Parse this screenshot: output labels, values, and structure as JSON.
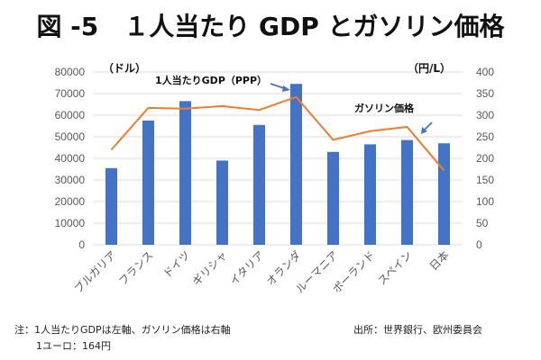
{
  "title": "図 -5　１人当たり GDP とガソリン価格",
  "chart_data": {
    "type": "bar+line",
    "title": "図 -5　１人当たり GDP とガソリン価格",
    "categories": [
      "ブルガリア",
      "フランス",
      "ドイツ",
      "ギリシャ",
      "イタリア",
      "オランダ",
      "ルーマニア",
      "ポーランド",
      "スペイン",
      "日本"
    ],
    "series": [
      {
        "name": "1人当たりGDP（PPP）",
        "type": "bar",
        "axis": "left",
        "color": "#4472C4",
        "values": [
          35500,
          57500,
          66500,
          39000,
          55500,
          74500,
          43000,
          46500,
          48500,
          47000
        ]
      },
      {
        "name": "ガソリン価格",
        "type": "line",
        "axis": "right",
        "color": "#ED7D31",
        "values": [
          220,
          317,
          315,
          321,
          312,
          342,
          243,
          263,
          273,
          172
        ]
      }
    ],
    "y_left": {
      "label": "（ドル）",
      "range": [
        0,
        80000
      ],
      "ticks": [
        "0",
        "10000",
        "20000",
        "30000",
        "40000",
        "50000",
        "60000",
        "70000",
        "80000"
      ]
    },
    "y_right": {
      "label": "（円/L）",
      "range": [
        0,
        400
      ],
      "ticks": [
        "0",
        "50",
        "100",
        "150",
        "200",
        "250",
        "300",
        "350",
        "400"
      ]
    },
    "grid": true,
    "annotations": {
      "gdp_label": "1人当たりGDP（PPP）",
      "gas_label": "ガソリン価格"
    }
  },
  "notes": {
    "line1": "注：1人当たりGDPは左軸、ガソリン価格は右軸",
    "line2": "1ユーロ：164円",
    "source": "出所：世界銀行、欧州委員会"
  }
}
